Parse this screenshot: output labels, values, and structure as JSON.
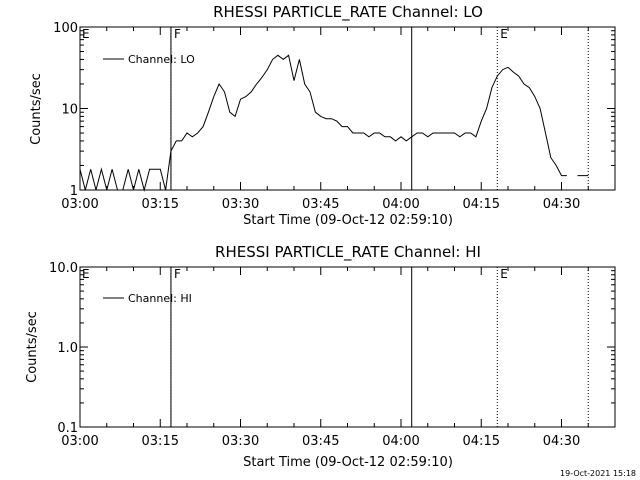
{
  "chart_data": [
    {
      "type": "line",
      "title": "RHESSI PARTICLE_RATE Channel: LO",
      "xlabel": "Start Time (09-Oct-12 02:59:10)",
      "ylabel": "Counts/sec",
      "yscale": "log",
      "ylim": [
        1,
        100
      ],
      "xlim": [
        "03:00",
        "04:40"
      ],
      "xticks": [
        "03:00",
        "03:15",
        "03:30",
        "03:45",
        "04:00",
        "04:15",
        "04:30"
      ],
      "yticks": [
        "1",
        "10",
        "100"
      ],
      "legend_position": "top-left",
      "series": [
        {
          "name": "Channel: LO",
          "x": [
            "03:00",
            "03:01",
            "03:02",
            "03:03",
            "03:04",
            "03:05",
            "03:06",
            "03:07",
            "03:08",
            "03:09",
            "03:10",
            "03:11",
            "03:12",
            "03:13",
            "03:14",
            "03:15",
            "03:16",
            "03:17",
            "03:18",
            "03:19",
            "03:20",
            "03:21",
            "03:22",
            "03:23",
            "03:24",
            "03:25",
            "03:26",
            "03:27",
            "03:28",
            "03:29",
            "03:30",
            "03:31",
            "03:32",
            "03:33",
            "03:34",
            "03:35",
            "03:36",
            "03:37",
            "03:38",
            "03:39",
            "03:40",
            "03:41",
            "03:42",
            "03:43",
            "03:44",
            "03:45",
            "03:46",
            "03:47",
            "03:48",
            "03:49",
            "03:50",
            "03:51",
            "03:52",
            "03:53",
            "03:54",
            "03:55",
            "03:56",
            "03:57",
            "03:58",
            "03:59",
            "04:00",
            "04:01",
            "04:02",
            "04:03",
            "04:04",
            "04:05",
            "04:06",
            "04:07",
            "04:08",
            "04:09",
            "04:10",
            "04:11",
            "04:12",
            "04:13",
            "04:14",
            "04:15",
            "04:16",
            "04:17",
            "04:18",
            "04:19",
            "04:20",
            "04:21",
            "04:22",
            "04:23",
            "04:24",
            "04:25",
            "04:26",
            "04:27",
            "04:28",
            "04:29",
            "04:30",
            "04:31",
            "04:32",
            "04:33",
            "04:34",
            "04:35"
          ],
          "values": [
            1.8,
            1,
            1.8,
            1,
            1.8,
            1,
            1.8,
            1,
            1,
            1.8,
            1,
            1.8,
            1,
            1.8,
            1.8,
            1.8,
            1,
            3,
            4,
            4,
            5,
            4.5,
            5,
            6,
            9,
            14,
            20,
            16,
            9,
            8,
            13,
            14,
            16,
            20,
            24,
            30,
            40,
            45,
            40,
            45,
            22,
            40,
            20,
            16,
            9,
            8,
            7.5,
            7.5,
            7,
            6,
            6,
            5,
            5,
            5,
            4.5,
            5,
            5,
            4.5,
            4.5,
            4,
            4.5,
            4,
            4.5,
            5,
            5,
            4.5,
            5,
            5,
            5,
            5,
            5,
            4.5,
            5,
            5,
            4.5,
            7,
            10,
            18,
            25,
            30,
            32,
            28,
            25,
            20,
            18,
            14,
            10,
            5,
            2.5,
            2,
            1.5,
            1.5,
            1.5,
            1.5,
            1.5,
            1.5
          ],
          "gaps": [
            {
              "from": "04:31",
              "to": "04:33"
            }
          ]
        }
      ],
      "annotations": [
        {
          "label": "F",
          "x": "03:17",
          "style": "dotted"
        },
        {
          "label": "",
          "x": "03:17",
          "style": "solid"
        },
        {
          "label": "",
          "x": "04:02",
          "style": "solid"
        },
        {
          "label": "E",
          "x": "04:18",
          "style": "dotted"
        },
        {
          "label": "",
          "x": "04:35",
          "style": "dotted"
        },
        {
          "label": "E",
          "x": "03:00",
          "style": "corner"
        }
      ]
    },
    {
      "type": "line",
      "title": "RHESSI PARTICLE_RATE Channel: HI",
      "xlabel": "Start Time (09-Oct-12 02:59:10)",
      "ylabel": "Counts/sec",
      "yscale": "log",
      "ylim": [
        0.1,
        10
      ],
      "xlim": [
        "03:00",
        "04:40"
      ],
      "xticks": [
        "03:00",
        "03:15",
        "03:30",
        "03:45",
        "04:00",
        "04:15",
        "04:30"
      ],
      "yticks": [
        "0.1",
        "1.0",
        "10.0"
      ],
      "legend_position": "top-left",
      "series": [
        {
          "name": "Channel: HI",
          "x": [],
          "values": []
        }
      ],
      "annotations": [
        {
          "label": "F",
          "x": "03:17",
          "style": "dotted"
        },
        {
          "label": "",
          "x": "03:17",
          "style": "solid"
        },
        {
          "label": "",
          "x": "04:02",
          "style": "solid"
        },
        {
          "label": "E",
          "x": "04:18",
          "style": "dotted"
        },
        {
          "label": "",
          "x": "04:35",
          "style": "dotted"
        },
        {
          "label": "E",
          "x": "03:00",
          "style": "corner"
        }
      ]
    }
  ],
  "footer": {
    "timestamp": "19-Oct-2021 15:18"
  },
  "colors": {
    "background": "#ffffff",
    "foreground": "#000000"
  }
}
